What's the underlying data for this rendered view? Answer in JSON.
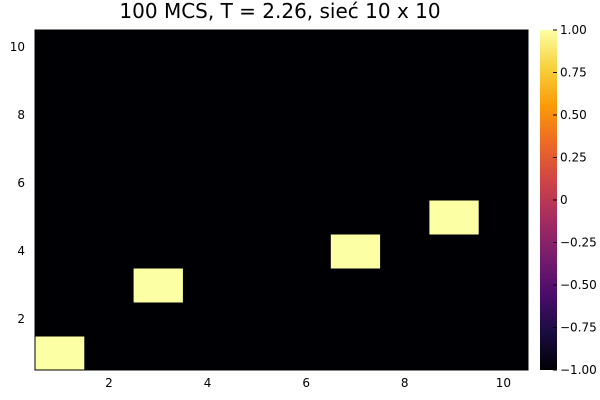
{
  "chart_data": {
    "type": "heatmap",
    "title": "100 MCS, T = 2.26, sieć 10 x 10",
    "xlabel": "",
    "ylabel": "",
    "x": [
      1,
      2,
      3,
      4,
      5,
      6,
      7,
      8,
      9,
      10
    ],
    "y": [
      1,
      2,
      3,
      4,
      5,
      6,
      7,
      8,
      9,
      10
    ],
    "xlim": [
      0.5,
      10.5
    ],
    "ylim": [
      0.5,
      10.5
    ],
    "x_ticks": [
      2,
      4,
      6,
      8,
      10
    ],
    "y_ticks": [
      2,
      4,
      6,
      8,
      10
    ],
    "x_tick_labels": [
      "2",
      "4",
      "6",
      "8",
      "10"
    ],
    "y_tick_labels": [
      "2",
      "4",
      "6",
      "8",
      "10"
    ],
    "z_rows_bottom_to_top": [
      [
        1,
        -1,
        -1,
        -1,
        -1,
        -1,
        -1,
        -1,
        -1,
        -1
      ],
      [
        -1,
        -1,
        -1,
        -1,
        -1,
        -1,
        -1,
        -1,
        -1,
        -1
      ],
      [
        -1,
        -1,
        1,
        -1,
        -1,
        -1,
        -1,
        -1,
        -1,
        -1
      ],
      [
        -1,
        -1,
        -1,
        -1,
        -1,
        -1,
        1,
        -1,
        -1,
        -1
      ],
      [
        -1,
        -1,
        -1,
        -1,
        -1,
        -1,
        -1,
        -1,
        1,
        -1
      ],
      [
        -1,
        -1,
        -1,
        -1,
        -1,
        -1,
        -1,
        -1,
        -1,
        -1
      ],
      [
        -1,
        -1,
        -1,
        -1,
        -1,
        -1,
        -1,
        -1,
        -1,
        -1
      ],
      [
        -1,
        -1,
        -1,
        -1,
        -1,
        -1,
        -1,
        -1,
        -1,
        -1
      ],
      [
        -1,
        -1,
        -1,
        -1,
        -1,
        -1,
        -1,
        -1,
        -1,
        -1
      ],
      [
        -1,
        -1,
        -1,
        -1,
        -1,
        -1,
        -1,
        -1,
        -1,
        -1
      ]
    ],
    "zlim": [
      -1,
      1
    ],
    "colormap": "inferno",
    "colorbar_ticks": [
      -1.0,
      -0.75,
      -0.5,
      -0.25,
      0,
      0.25,
      0.5,
      0.75,
      1.0
    ],
    "colorbar_tick_labels": [
      "−1.00",
      "−0.75",
      "−0.50",
      "−0.25",
      "0",
      "0.25",
      "0.50",
      "0.75",
      "1.00"
    ],
    "colorbar_stops": [
      "#000004",
      "#1b0c41",
      "#4a0c6b",
      "#781c6d",
      "#a52c60",
      "#cf4446",
      "#ed6925",
      "#fb9b06",
      "#f7d13d",
      "#fcffa4"
    ],
    "grid": false,
    "legend": "none"
  }
}
